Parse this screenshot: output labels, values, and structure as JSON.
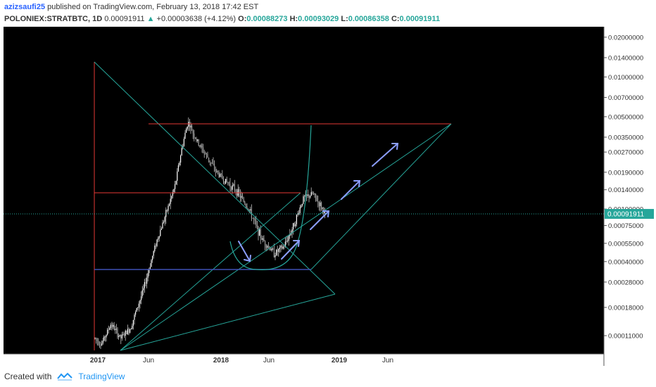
{
  "header": {
    "author": "azizsaufi25",
    "published_text": "published on TradingView.com, February 13, 2018 17:42 EST",
    "symbol": "POLONIEX:STRATBTC, 1D",
    "last_price": "0.00091911",
    "change": "+0.00003638 (+4.12%)",
    "open_label": "O:",
    "open_value": "0.00088273",
    "high_label": "H:",
    "high_value": "0.00093029",
    "low_label": "L:",
    "low_value": "0.00086358",
    "close_label": "C:",
    "close_value": "0.00091911"
  },
  "footer": {
    "created_with": "Created with",
    "brand": "TradingView"
  },
  "colors": {
    "background": "#000000",
    "candles": "#d9d9d9",
    "trend_green": "#26a69a",
    "resistance_red": "#e53935",
    "support_blue": "#3f51b5",
    "arrows": "#8c9eff",
    "price_tag": "#26a69a"
  },
  "chart_data": {
    "type": "candlestick",
    "scale": "log",
    "x_ticks": [
      "2017",
      "Jun",
      "2018",
      "Jun",
      "2019",
      "Jun"
    ],
    "y_ticks": [
      "0.02000000",
      "0.01400000",
      "0.01000000",
      "0.00700000",
      "0.00500000",
      "0.00350000",
      "0.00270000",
      "0.00190000",
      "0.00140000",
      "0.00100000",
      "0.00075000",
      "0.00055000",
      "0.00040000",
      "0.00028000",
      "0.00018000",
      "0.00011000"
    ],
    "current_price_label": "0.00091911",
    "current_price": 0.00091911,
    "ylim": [
      8e-05,
      0.024
    ],
    "price_path": [
      [
        0,
        0.000105
      ],
      [
        0.1,
        9.5e-05
      ],
      [
        0.25,
        0.000135
      ],
      [
        0.4,
        0.000105
      ],
      [
        0.55,
        0.000125
      ],
      [
        0.75,
        0.00024
      ],
      [
        0.95,
        0.00055
      ],
      [
        1.1,
        0.0009
      ],
      [
        1.25,
        0.0015
      ],
      [
        1.35,
        0.0028
      ],
      [
        1.45,
        0.0046
      ],
      [
        1.6,
        0.0032
      ],
      [
        1.75,
        0.0025
      ],
      [
        1.9,
        0.0019
      ],
      [
        2.05,
        0.0016
      ],
      [
        2.2,
        0.0014
      ],
      [
        2.4,
        0.001
      ],
      [
        2.6,
        0.0006
      ],
      [
        2.8,
        0.00046
      ],
      [
        2.95,
        0.00052
      ],
      [
        3.1,
        0.00075
      ],
      [
        3.25,
        0.0012
      ],
      [
        3.4,
        0.0013
      ],
      [
        3.5,
        0.0011
      ],
      [
        3.6,
        0.00092
      ]
    ]
  }
}
